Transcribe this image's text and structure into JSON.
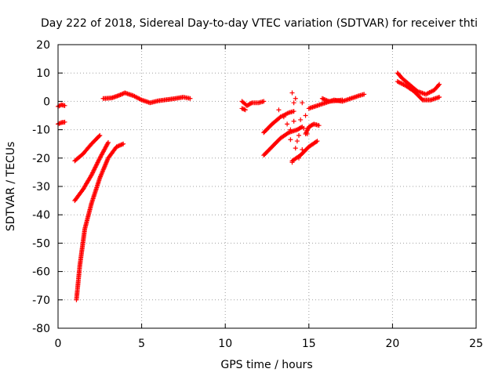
{
  "chart_data": {
    "type": "scatter",
    "title": "Day 222 of 2018, Sidereal Day-to-day VTEC variation (SDTVAR) for receiver thti",
    "xlabel": "GPS time / hours",
    "ylabel": "SDTVAR / TECUs",
    "xlim": [
      0,
      25
    ],
    "ylim": [
      -80,
      20
    ],
    "xticks": [
      0,
      5,
      10,
      15,
      20,
      25
    ],
    "yticks": [
      -80,
      -70,
      -60,
      -50,
      -40,
      -30,
      -20,
      -10,
      0,
      10,
      20
    ],
    "grid": true,
    "marker": "plus",
    "color": "#ff0000",
    "series": [
      {
        "segments": [
          [
            [
              0.0,
              -1.8
            ],
            [
              0.2,
              -1.2
            ],
            [
              0.4,
              -1.5
            ]
          ],
          [
            [
              0.0,
              -8.0
            ],
            [
              0.2,
              -7.5
            ],
            [
              0.4,
              -7.3
            ]
          ],
          [
            [
              1.0,
              -21.0
            ],
            [
              1.5,
              -18.5
            ],
            [
              2.0,
              -15.0
            ],
            [
              2.5,
              -12.0
            ]
          ],
          [
            [
              1.0,
              -35.0
            ],
            [
              1.5,
              -31.0
            ],
            [
              2.0,
              -26.0
            ],
            [
              2.5,
              -20.0
            ],
            [
              3.0,
              -14.5
            ]
          ],
          [
            [
              1.1,
              -70.0
            ],
            [
              1.3,
              -58.0
            ],
            [
              1.6,
              -45.0
            ],
            [
              2.0,
              -36.0
            ],
            [
              2.5,
              -27.0
            ],
            [
              3.0,
              -20.0
            ],
            [
              3.5,
              -16.0
            ],
            [
              3.9,
              -15.0
            ]
          ],
          [
            [
              2.7,
              1.0
            ],
            [
              3.2,
              1.2
            ],
            [
              3.6,
              2.0
            ],
            [
              4.0,
              3.0
            ],
            [
              4.5,
              2.0
            ],
            [
              5.0,
              0.5
            ],
            [
              5.5,
              -0.5
            ],
            [
              6.0,
              0.2
            ],
            [
              6.5,
              0.6
            ],
            [
              7.0,
              1.0
            ],
            [
              7.5,
              1.5
            ],
            [
              7.9,
              1.0
            ]
          ],
          [
            [
              11.0,
              0.0
            ],
            [
              11.3,
              -1.5
            ],
            [
              11.6,
              -0.5
            ],
            [
              12.0,
              -0.5
            ],
            [
              12.3,
              0.0
            ]
          ],
          [
            [
              11.0,
              -2.5
            ],
            [
              11.2,
              -3.0
            ]
          ],
          [
            [
              12.3,
              -19.0
            ],
            [
              12.8,
              -16.0
            ],
            [
              13.3,
              -13.0
            ],
            [
              13.8,
              -11.0
            ],
            [
              14.3,
              -10.0
            ],
            [
              14.6,
              -9.0
            ]
          ],
          [
            [
              12.3,
              -11.0
            ],
            [
              12.8,
              -8.0
            ],
            [
              13.3,
              -5.5
            ],
            [
              13.8,
              -4.0
            ],
            [
              14.1,
              -3.5
            ]
          ],
          [
            [
              14.0,
              -21.0
            ],
            [
              14.5,
              -19.0
            ],
            [
              15.0,
              -16.0
            ],
            [
              15.5,
              -14.0
            ]
          ],
          [
            [
              14.8,
              -11.5
            ],
            [
              15.0,
              -9.0
            ],
            [
              15.3,
              -8.0
            ],
            [
              15.6,
              -8.5
            ]
          ],
          [
            [
              15.0,
              -2.5
            ],
            [
              15.5,
              -1.5
            ],
            [
              16.0,
              -0.5
            ],
            [
              16.5,
              0.5
            ],
            [
              17.0,
              0.0
            ],
            [
              17.5,
              1.0
            ],
            [
              18.0,
              2.0
            ],
            [
              18.3,
              2.5
            ]
          ],
          [
            [
              15.8,
              1.0
            ],
            [
              16.2,
              0.0
            ],
            [
              16.6,
              0.2
            ],
            [
              17.0,
              0.5
            ]
          ],
          [
            [
              20.3,
              10.0
            ],
            [
              20.6,
              8.0
            ],
            [
              21.0,
              6.0
            ],
            [
              21.5,
              3.5
            ],
            [
              22.0,
              2.5
            ],
            [
              22.5,
              4.0
            ],
            [
              22.8,
              6.0
            ]
          ],
          [
            [
              20.3,
              7.0
            ],
            [
              20.8,
              5.5
            ],
            [
              21.3,
              3.5
            ],
            [
              21.8,
              0.5
            ],
            [
              22.3,
              0.5
            ],
            [
              22.8,
              1.5
            ]
          ]
        ],
        "scattered": [
          [
            13.2,
            -3.0
          ],
          [
            13.5,
            -5.5
          ],
          [
            13.7,
            -8.0
          ],
          [
            13.9,
            -10.0
          ],
          [
            14.0,
            3.0
          ],
          [
            14.1,
            -0.5
          ],
          [
            14.2,
            1.0
          ],
          [
            14.3,
            -14.0
          ],
          [
            14.4,
            -12.0
          ],
          [
            14.5,
            -6.5
          ],
          [
            14.6,
            -17.0
          ],
          [
            14.7,
            -9.5
          ],
          [
            14.8,
            -5.0
          ],
          [
            14.9,
            -11.5
          ],
          [
            14.2,
            -16.5
          ],
          [
            14.4,
            -20.0
          ],
          [
            14.0,
            -21.5
          ],
          [
            14.6,
            -0.5
          ],
          [
            14.1,
            -7.0
          ],
          [
            13.9,
            -13.5
          ]
        ]
      }
    ]
  }
}
